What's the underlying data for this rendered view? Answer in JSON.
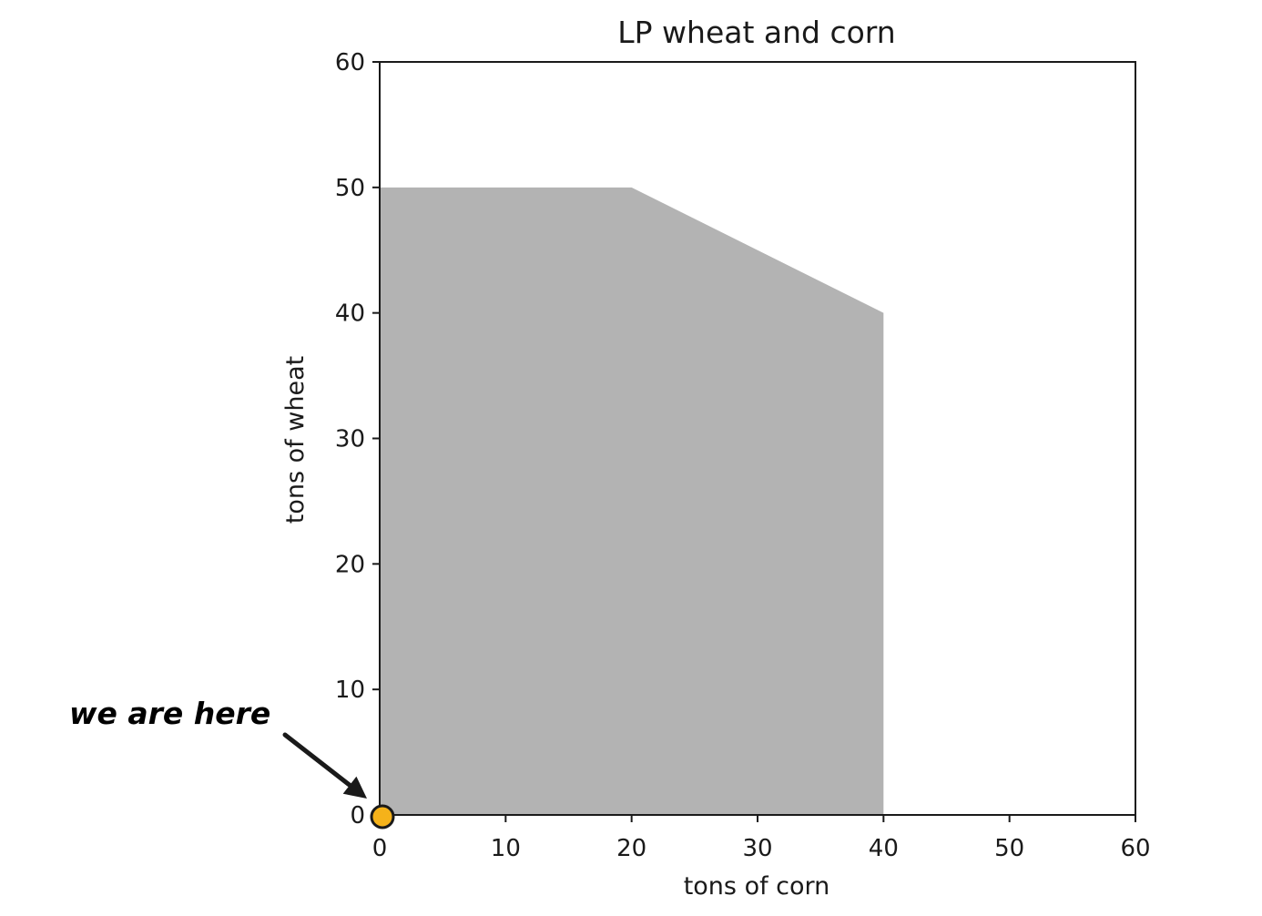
{
  "chart_data": {
    "type": "area",
    "title": "LP wheat and corn",
    "xlabel": "tons of corn",
    "ylabel": "tons of wheat",
    "xlim": [
      0,
      60
    ],
    "ylim": [
      0,
      60
    ],
    "xticks": [
      0,
      10,
      20,
      30,
      40,
      50,
      60
    ],
    "yticks": [
      0,
      10,
      20,
      30,
      40,
      50,
      60
    ],
    "grid": false,
    "feasible_region": {
      "color": "#b3b3b3",
      "vertices": [
        {
          "x": 0,
          "y": 0
        },
        {
          "x": 0,
          "y": 50
        },
        {
          "x": 20,
          "y": 50
        },
        {
          "x": 40,
          "y": 40
        },
        {
          "x": 40,
          "y": 0
        }
      ]
    },
    "marker": {
      "x": 0,
      "y": 0,
      "fill": "#f5b21a",
      "stroke": "#1a1a1a"
    },
    "annotation": {
      "text": "we are here",
      "arrow_to": {
        "x": 0,
        "y": 0
      }
    }
  }
}
